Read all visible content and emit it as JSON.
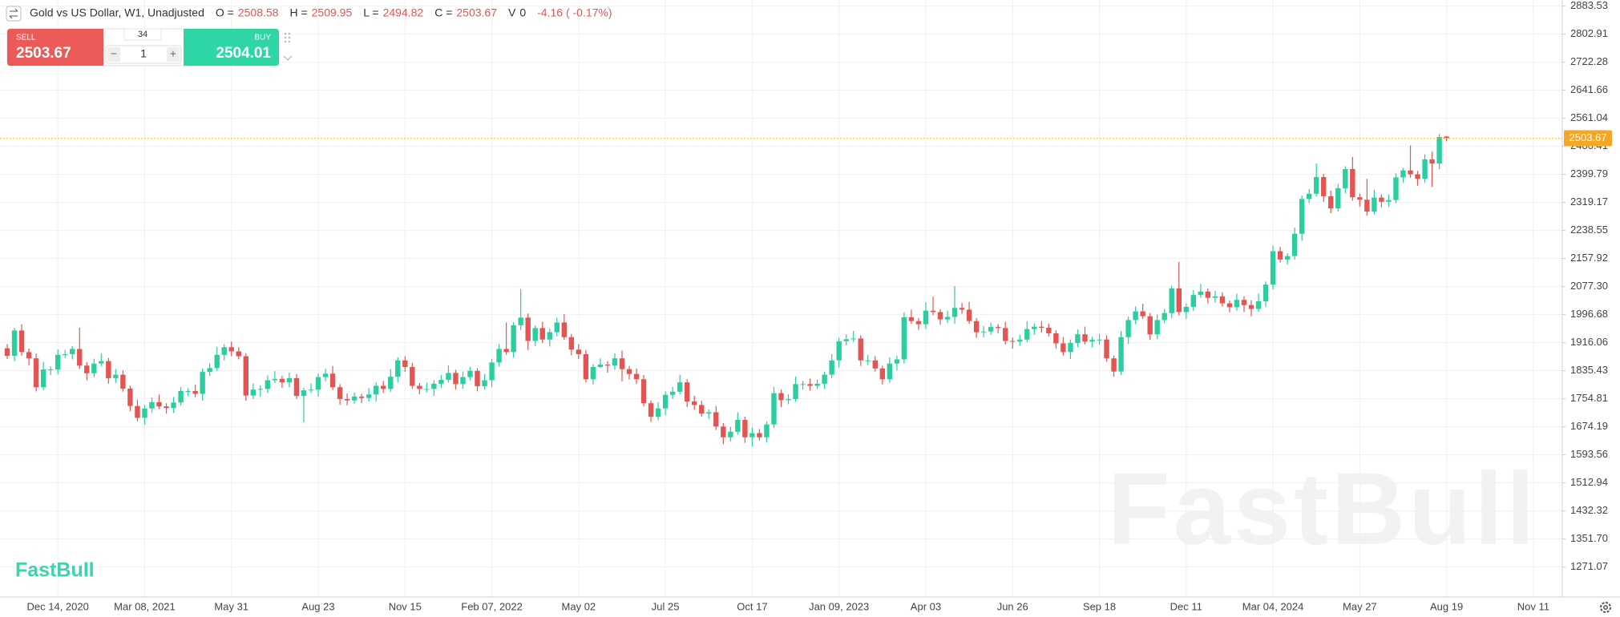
{
  "chart_data": {
    "type": "candlestick",
    "title": "Gold vs US Dollar, W1, Unadjusted",
    "legend": {
      "open_label": "O =",
      "high_label": "H =",
      "low_label": "L =",
      "close_label": "C =",
      "volume_label": "V",
      "volume": 0,
      "change": "-4.16 ( -0.17%)"
    },
    "up_color": "#2bcf9f",
    "down_color": "#e35552",
    "last_price_color": "#f5a623",
    "grid": true,
    "xlim": [
      -1,
      215
    ],
    "ylim": [
      1185,
      2901
    ],
    "xticks": [
      {
        "value": 7,
        "label": "Dec 14, 2020"
      },
      {
        "value": 19,
        "label": "Mar 08, 2021"
      },
      {
        "value": 31,
        "label": "May 31"
      },
      {
        "value": 43,
        "label": "Aug 23"
      },
      {
        "value": 55,
        "label": "Nov 15"
      },
      {
        "value": 67,
        "label": "Feb 07, 2022"
      },
      {
        "value": 79,
        "label": "May 02"
      },
      {
        "value": 91,
        "label": "Jul 25"
      },
      {
        "value": 103,
        "label": "Oct 17"
      },
      {
        "value": 115,
        "label": "Jan 09, 2023"
      },
      {
        "value": 127,
        "label": "Apr 03"
      },
      {
        "value": 139,
        "label": "Jun 26"
      },
      {
        "value": 151,
        "label": "Sep 18"
      },
      {
        "value": 163,
        "label": "Dec 11"
      },
      {
        "value": 175,
        "label": "Mar 04, 2024"
      },
      {
        "value": 187,
        "label": "May 27"
      },
      {
        "value": 199,
        "label": "Aug 19"
      },
      {
        "value": 211,
        "label": "Nov 11"
      }
    ],
    "yticks": [
      2883.53,
      2802.91,
      2722.28,
      2641.66,
      2561.04,
      2480.41,
      2399.79,
      2319.17,
      2238.55,
      2157.92,
      {
        "value": 2077.3,
        "label": "2077.30"
      },
      1996.68,
      1916.06,
      1835.43,
      1754.81,
      1674.19,
      1593.56,
      1512.94,
      1432.32,
      {
        "value": 1351.7,
        "label": "1351.70"
      },
      1271.07
    ],
    "candles": [
      [
        1900,
        1912,
        1869,
        1878
      ],
      [
        1878,
        1959,
        1863,
        1951
      ],
      [
        1951,
        1969,
        1879,
        1889
      ],
      [
        1889,
        1899,
        1851,
        1871
      ],
      [
        1871,
        1885,
        1776,
        1788
      ],
      [
        1788,
        1861,
        1780,
        1839
      ],
      [
        1839,
        1848,
        1823,
        1839
      ],
      [
        1839,
        1897,
        1825,
        1881
      ],
      [
        1881,
        1895,
        1872,
        1883
      ],
      [
        1883,
        1906,
        1868,
        1898
      ],
      [
        1898,
        1959,
        1840,
        1850
      ],
      [
        1850,
        1860,
        1808,
        1828
      ],
      [
        1828,
        1870,
        1816,
        1856
      ],
      [
        1856,
        1885,
        1848,
        1863
      ],
      [
        1863,
        1872,
        1798,
        1814
      ],
      [
        1814,
        1840,
        1800,
        1824
      ],
      [
        1824,
        1836,
        1775,
        1784
      ],
      [
        1784,
        1792,
        1719,
        1734
      ],
      [
        1734,
        1752,
        1690,
        1700
      ],
      [
        1700,
        1737,
        1680,
        1727
      ],
      [
        1727,
        1759,
        1715,
        1745
      ],
      [
        1745,
        1767,
        1725,
        1733
      ],
      [
        1733,
        1742,
        1712,
        1728
      ],
      [
        1728,
        1760,
        1714,
        1744
      ],
      [
        1744,
        1789,
        1735,
        1777
      ],
      [
        1777,
        1785,
        1762,
        1777
      ],
      [
        1777,
        1795,
        1759,
        1769
      ],
      [
        1769,
        1842,
        1749,
        1832
      ],
      [
        1832,
        1857,
        1820,
        1843
      ],
      [
        1843,
        1903,
        1835,
        1881
      ],
      [
        1881,
        1912,
        1865,
        1903
      ],
      [
        1903,
        1919,
        1877,
        1891
      ],
      [
        1891,
        1903,
        1868,
        1877
      ],
      [
        1877,
        1885,
        1749,
        1764
      ],
      [
        1764,
        1799,
        1754,
        1781
      ],
      [
        1781,
        1793,
        1761,
        1783
      ],
      [
        1783,
        1822,
        1771,
        1808
      ],
      [
        1808,
        1834,
        1800,
        1812
      ],
      [
        1812,
        1821,
        1786,
        1802
      ],
      [
        1802,
        1830,
        1788,
        1814
      ],
      [
        1814,
        1826,
        1754,
        1763
      ],
      [
        1763,
        1787,
        1687,
        1779
      ],
      [
        1779,
        1799,
        1771,
        1781
      ],
      [
        1781,
        1827,
        1761,
        1817
      ],
      [
        1817,
        1841,
        1805,
        1827
      ],
      [
        1827,
        1849,
        1780,
        1788
      ],
      [
        1788,
        1797,
        1738,
        1754
      ],
      [
        1754,
        1770,
        1736,
        1750
      ],
      [
        1750,
        1773,
        1741,
        1761
      ],
      [
        1761,
        1769,
        1742,
        1757
      ],
      [
        1757,
        1785,
        1747,
        1767
      ],
      [
        1767,
        1802,
        1747,
        1792
      ],
      [
        1792,
        1806,
        1771,
        1783
      ],
      [
        1783,
        1840,
        1775,
        1818
      ],
      [
        1818,
        1874,
        1802,
        1865
      ],
      [
        1865,
        1877,
        1832,
        1846
      ],
      [
        1846,
        1858,
        1783,
        1792
      ],
      [
        1792,
        1800,
        1768,
        1783
      ],
      [
        1783,
        1801,
        1773,
        1783
      ],
      [
        1783,
        1808,
        1763,
        1798
      ],
      [
        1798,
        1823,
        1786,
        1809
      ],
      [
        1809,
        1851,
        1801,
        1829
      ],
      [
        1829,
        1838,
        1781,
        1797
      ],
      [
        1797,
        1833,
        1783,
        1817
      ],
      [
        1817,
        1847,
        1808,
        1835
      ],
      [
        1835,
        1843,
        1776,
        1791
      ],
      [
        1791,
        1826,
        1781,
        1808
      ],
      [
        1808,
        1869,
        1788,
        1859
      ],
      [
        1859,
        1912,
        1847,
        1898
      ],
      [
        1898,
        1974,
        1881,
        1889
      ],
      [
        1889,
        1975,
        1873,
        1966
      ],
      [
        1966,
        2070,
        1952,
        1988
      ],
      [
        1988,
        2000,
        1895,
        1921
      ],
      [
        1921,
        1966,
        1906,
        1958
      ],
      [
        1958,
        1976,
        1915,
        1925
      ],
      [
        1925,
        1956,
        1905,
        1946
      ],
      [
        1946,
        1988,
        1934,
        1974
      ],
      [
        1974,
        1998,
        1924,
        1932
      ],
      [
        1932,
        1941,
        1880,
        1896
      ],
      [
        1896,
        1912,
        1869,
        1883
      ],
      [
        1883,
        1895,
        1802,
        1811
      ],
      [
        1811,
        1854,
        1796,
        1846
      ],
      [
        1846,
        1871,
        1843,
        1853
      ],
      [
        1853,
        1863,
        1830,
        1850
      ],
      [
        1850,
        1885,
        1838,
        1871
      ],
      [
        1871,
        1893,
        1805,
        1840
      ],
      [
        1840,
        1849,
        1810,
        1826
      ],
      [
        1826,
        1842,
        1797,
        1811
      ],
      [
        1811,
        1823,
        1733,
        1742
      ],
      [
        1742,
        1750,
        1688,
        1703
      ],
      [
        1703,
        1745,
        1693,
        1727
      ],
      [
        1727,
        1776,
        1707,
        1766
      ],
      [
        1766,
        1789,
        1754,
        1775
      ],
      [
        1775,
        1824,
        1767,
        1802
      ],
      [
        1802,
        1811,
        1731,
        1747
      ],
      [
        1747,
        1763,
        1723,
        1737
      ],
      [
        1737,
        1749,
        1703,
        1712
      ],
      [
        1712,
        1724,
        1697,
        1716
      ],
      [
        1716,
        1734,
        1665,
        1675
      ],
      [
        1675,
        1685,
        1624,
        1644
      ],
      [
        1644,
        1674,
        1632,
        1660
      ],
      [
        1660,
        1716,
        1652,
        1694
      ],
      [
        1694,
        1703,
        1628,
        1644
      ],
      [
        1644,
        1672,
        1618,
        1656
      ],
      [
        1656,
        1668,
        1635,
        1644
      ],
      [
        1644,
        1689,
        1629,
        1681
      ],
      [
        1681,
        1789,
        1671,
        1771
      ],
      [
        1771,
        1781,
        1731,
        1751
      ],
      [
        1751,
        1768,
        1739,
        1754
      ],
      [
        1754,
        1819,
        1746,
        1797
      ],
      [
        1797,
        1806,
        1781,
        1797
      ],
      [
        1797,
        1813,
        1778,
        1792
      ],
      [
        1792,
        1810,
        1783,
        1798
      ],
      [
        1798,
        1832,
        1783,
        1824
      ],
      [
        1824,
        1883,
        1814,
        1865
      ],
      [
        1865,
        1930,
        1845,
        1920
      ],
      [
        1920,
        1940,
        1908,
        1926
      ],
      [
        1926,
        1950,
        1918,
        1928
      ],
      [
        1928,
        1937,
        1849,
        1865
      ],
      [
        1865,
        1881,
        1851,
        1865
      ],
      [
        1865,
        1877,
        1833,
        1842
      ],
      [
        1842,
        1850,
        1796,
        1811
      ],
      [
        1811,
        1874,
        1801,
        1856
      ],
      [
        1856,
        1878,
        1836,
        1868
      ],
      [
        1868,
        2003,
        1856,
        1989
      ],
      [
        1989,
        2011,
        1970,
        1978
      ],
      [
        1978,
        1987,
        1953,
        1969
      ],
      [
        1969,
        2032,
        1955,
        2008
      ],
      [
        2008,
        2048,
        1995,
        2004
      ],
      [
        2004,
        2012,
        1968,
        1983
      ],
      [
        1983,
        2008,
        1973,
        1990
      ],
      [
        1990,
        2079,
        1970,
        2016
      ],
      [
        2016,
        2030,
        1999,
        2011
      ],
      [
        2011,
        2033,
        1970,
        1978
      ],
      [
        1978,
        1987,
        1930,
        1946
      ],
      [
        1946,
        1964,
        1932,
        1948
      ],
      [
        1948,
        1973,
        1939,
        1961
      ],
      [
        1961,
        1969,
        1943,
        1958
      ],
      [
        1958,
        1976,
        1911,
        1921
      ],
      [
        1921,
        1931,
        1899,
        1919
      ],
      [
        1919,
        1939,
        1907,
        1925
      ],
      [
        1925,
        1977,
        1917,
        1955
      ],
      [
        1955,
        1971,
        1939,
        1962
      ],
      [
        1962,
        1978,
        1945,
        1959
      ],
      [
        1959,
        1971,
        1934,
        1943
      ],
      [
        1943,
        1951,
        1899,
        1914
      ],
      [
        1914,
        1932,
        1879,
        1889
      ],
      [
        1889,
        1925,
        1869,
        1915
      ],
      [
        1915,
        1954,
        1903,
        1940
      ],
      [
        1940,
        1962,
        1911,
        1919
      ],
      [
        1919,
        1933,
        1903,
        1924
      ],
      [
        1924,
        1941,
        1910,
        1925
      ],
      [
        1925,
        1937,
        1862,
        1871
      ],
      [
        1871,
        1879,
        1818,
        1833
      ],
      [
        1833,
        1950,
        1823,
        1932
      ],
      [
        1932,
        1991,
        1912,
        1981
      ],
      [
        1981,
        2020,
        1969,
        2006
      ],
      [
        2006,
        2028,
        1984,
        1992
      ],
      [
        1992,
        2001,
        1924,
        1940
      ],
      [
        1940,
        1997,
        1926,
        1981
      ],
      [
        1981,
        2013,
        1972,
        2001
      ],
      [
        2001,
        2080,
        1986,
        2072
      ],
      [
        2072,
        2148,
        1994,
        2004
      ],
      [
        2004,
        2029,
        1984,
        2019
      ],
      [
        2019,
        2067,
        2007,
        2053
      ],
      [
        2053,
        2085,
        2045,
        2063
      ],
      [
        2063,
        2072,
        2029,
        2045
      ],
      [
        2045,
        2065,
        2031,
        2049
      ],
      [
        2049,
        2061,
        2020,
        2029
      ],
      [
        2029,
        2037,
        2003,
        2018
      ],
      [
        2018,
        2057,
        2008,
        2039
      ],
      [
        2039,
        2049,
        2004,
        2024
      ],
      [
        2024,
        2038,
        1992,
        2013
      ],
      [
        2013,
        2057,
        2005,
        2035
      ],
      [
        2035,
        2092,
        2019,
        2083
      ],
      [
        2083,
        2195,
        2069,
        2179
      ],
      [
        2179,
        2191,
        2146,
        2155
      ],
      [
        2155,
        2173,
        2140,
        2165
      ],
      [
        2165,
        2247,
        2155,
        2229
      ],
      [
        2229,
        2339,
        2209,
        2329
      ],
      [
        2329,
        2358,
        2317,
        2344
      ],
      [
        2344,
        2431,
        2336,
        2392
      ],
      [
        2392,
        2401,
        2321,
        2337
      ],
      [
        2337,
        2353,
        2288,
        2302
      ],
      [
        2302,
        2372,
        2293,
        2360
      ],
      [
        2360,
        2423,
        2345,
        2415
      ],
      [
        2415,
        2450,
        2324,
        2334
      ],
      [
        2334,
        2344,
        2307,
        2327
      ],
      [
        2327,
        2387,
        2281,
        2293
      ],
      [
        2293,
        2355,
        2285,
        2333
      ],
      [
        2333,
        2342,
        2305,
        2321
      ],
      [
        2321,
        2342,
        2307,
        2326
      ],
      [
        2326,
        2403,
        2317,
        2391
      ],
      [
        2391,
        2419,
        2376,
        2411
      ],
      [
        2411,
        2483,
        2390,
        2400
      ],
      [
        2400,
        2410,
        2367,
        2387
      ],
      [
        2387,
        2457,
        2375,
        2443
      ],
      [
        2443,
        2465,
        2364,
        2431
      ],
      [
        2431,
        2516,
        2415,
        2507
      ],
      [
        2508.58,
        2509.95,
        2494.82,
        2503.67
      ]
    ]
  },
  "trade_panel": {
    "sell_label": "SELL",
    "sell_price": 2503.67,
    "buy_label": "BUY",
    "buy_price": 2504.01,
    "spread": 34,
    "quantity": 1,
    "minus": "−",
    "plus": "+"
  },
  "watermark": "FastBull",
  "logo": "FastBull"
}
